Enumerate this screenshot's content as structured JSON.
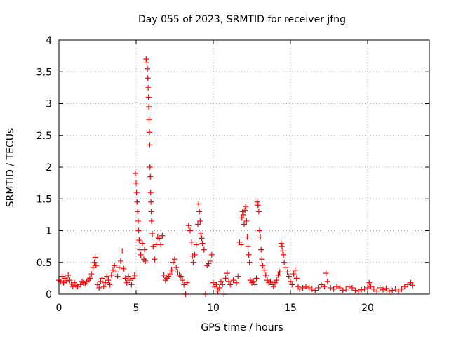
{
  "chart_data": {
    "type": "scatter",
    "title": "Day 055 of 2023, SRMTID for receiver jfng",
    "xlabel": "GPS time / hours",
    "ylabel": "SRMTID / TECUs",
    "xlim": [
      0,
      24
    ],
    "ylim": [
      0,
      4
    ],
    "xticks": [
      0,
      5,
      10,
      15,
      20
    ],
    "xtick_labels": [
      "0",
      "5",
      "10",
      "15",
      "20"
    ],
    "yticks": [
      0,
      0.5,
      1,
      1.5,
      2,
      2.5,
      3,
      3.5,
      4
    ],
    "ytick_labels": [
      "0",
      "0.5",
      "1",
      "1.5",
      "2",
      "2.5",
      "3",
      "3.5",
      "4"
    ],
    "grid": true,
    "marker": "+",
    "series": [
      {
        "name": "SRMTID",
        "color": "#ff0000",
        "points": [
          [
            0.0,
            0.22
          ],
          [
            0.1,
            0.2
          ],
          [
            0.2,
            0.28
          ],
          [
            0.3,
            0.18
          ],
          [
            0.4,
            0.25
          ],
          [
            0.5,
            0.21
          ],
          [
            0.6,
            0.3
          ],
          [
            0.7,
            0.22
          ],
          [
            0.8,
            0.16
          ],
          [
            0.9,
            0.12
          ],
          [
            1.0,
            0.18
          ],
          [
            1.1,
            0.14
          ],
          [
            1.2,
            0.12
          ],
          [
            1.4,
            0.15
          ],
          [
            1.5,
            0.2
          ],
          [
            1.6,
            0.18
          ],
          [
            1.7,
            0.16
          ],
          [
            1.8,
            0.2
          ],
          [
            1.9,
            0.22
          ],
          [
            2.0,
            0.25
          ],
          [
            2.1,
            0.32
          ],
          [
            2.2,
            0.42
          ],
          [
            2.3,
            0.5
          ],
          [
            2.35,
            0.58
          ],
          [
            2.4,
            0.45
          ],
          [
            2.5,
            0.15
          ],
          [
            2.6,
            0.1
          ],
          [
            2.7,
            0.2
          ],
          [
            2.8,
            0.25
          ],
          [
            2.9,
            0.12
          ],
          [
            3.0,
            0.18
          ],
          [
            3.1,
            0.28
          ],
          [
            3.2,
            0.22
          ],
          [
            3.3,
            0.15
          ],
          [
            3.4,
            0.3
          ],
          [
            3.5,
            0.38
          ],
          [
            3.6,
            0.45
          ],
          [
            3.7,
            0.35
          ],
          [
            3.8,
            0.28
          ],
          [
            3.9,
            0.42
          ],
          [
            4.0,
            0.52
          ],
          [
            4.1,
            0.68
          ],
          [
            4.2,
            0.4
          ],
          [
            4.3,
            0.25
          ],
          [
            4.4,
            0.18
          ],
          [
            4.5,
            0.28
          ],
          [
            4.6,
            0.22
          ],
          [
            4.7,
            0.15
          ],
          [
            4.8,
            0.25
          ],
          [
            4.9,
            0.3
          ],
          [
            4.95,
            1.9
          ],
          [
            5.0,
            1.75
          ],
          [
            5.03,
            1.6
          ],
          [
            5.06,
            1.45
          ],
          [
            5.1,
            1.3
          ],
          [
            5.13,
            1.15
          ],
          [
            5.16,
            1.0
          ],
          [
            5.2,
            0.85
          ],
          [
            5.25,
            0.7
          ],
          [
            5.3,
            0.62
          ],
          [
            5.4,
            0.8
          ],
          [
            5.5,
            0.55
          ],
          [
            5.55,
            0.7
          ],
          [
            5.6,
            0.52
          ],
          [
            5.65,
            3.7
          ],
          [
            5.7,
            3.65
          ],
          [
            5.73,
            3.55
          ],
          [
            5.76,
            3.4
          ],
          [
            5.78,
            3.25
          ],
          [
            5.8,
            3.1
          ],
          [
            5.82,
            2.95
          ],
          [
            5.84,
            2.75
          ],
          [
            5.86,
            2.55
          ],
          [
            5.88,
            2.35
          ],
          [
            5.9,
            2.0
          ],
          [
            5.92,
            1.85
          ],
          [
            5.94,
            1.6
          ],
          [
            5.96,
            1.45
          ],
          [
            5.98,
            1.3
          ],
          [
            6.0,
            1.15
          ],
          [
            6.05,
            0.95
          ],
          [
            6.1,
            0.75
          ],
          [
            6.2,
            0.55
          ],
          [
            6.3,
            0.78
          ],
          [
            6.4,
            0.9
          ],
          [
            6.5,
            0.88
          ],
          [
            6.6,
            0.78
          ],
          [
            6.7,
            0.92
          ],
          [
            6.8,
            0.3
          ],
          [
            6.9,
            0.22
          ],
          [
            7.0,
            0.25
          ],
          [
            7.1,
            0.28
          ],
          [
            7.2,
            0.32
          ],
          [
            7.3,
            0.38
          ],
          [
            7.4,
            0.5
          ],
          [
            7.5,
            0.55
          ],
          [
            7.6,
            0.42
          ],
          [
            7.7,
            0.35
          ],
          [
            7.8,
            0.3
          ],
          [
            7.9,
            0.28
          ],
          [
            8.0,
            0.22
          ],
          [
            8.1,
            0.15
          ],
          [
            8.2,
            0.0
          ],
          [
            8.3,
            0.18
          ],
          [
            8.4,
            1.08
          ],
          [
            8.5,
            1.0
          ],
          [
            8.6,
            0.82
          ],
          [
            8.65,
            0.6
          ],
          [
            8.7,
            0.5
          ],
          [
            8.8,
            0.62
          ],
          [
            8.9,
            0.78
          ],
          [
            9.0,
            1.1
          ],
          [
            9.05,
            1.42
          ],
          [
            9.1,
            1.3
          ],
          [
            9.15,
            1.15
          ],
          [
            9.2,
            0.95
          ],
          [
            9.25,
            0.88
          ],
          [
            9.3,
            0.8
          ],
          [
            9.4,
            0.7
          ],
          [
            9.5,
            0.0
          ],
          [
            9.6,
            0.45
          ],
          [
            9.7,
            0.48
          ],
          [
            9.8,
            0.52
          ],
          [
            9.9,
            0.62
          ],
          [
            10.0,
            0.18
          ],
          [
            10.1,
            0.12
          ],
          [
            10.2,
            0.15
          ],
          [
            10.3,
            0.05
          ],
          [
            10.4,
            0.1
          ],
          [
            10.5,
            0.2
          ],
          [
            10.6,
            0.15
          ],
          [
            10.7,
            0.0
          ],
          [
            10.8,
            0.25
          ],
          [
            10.9,
            0.33
          ],
          [
            11.0,
            0.2
          ],
          [
            11.1,
            0.15
          ],
          [
            11.3,
            0.22
          ],
          [
            11.5,
            0.18
          ],
          [
            11.6,
            0.28
          ],
          [
            11.7,
            0.82
          ],
          [
            11.8,
            0.78
          ],
          [
            11.85,
            1.2
          ],
          [
            11.9,
            1.3
          ],
          [
            11.95,
            1.25
          ],
          [
            12.0,
            1.1
          ],
          [
            12.05,
            1.32
          ],
          [
            12.1,
            1.38
          ],
          [
            12.15,
            1.15
          ],
          [
            12.2,
            0.9
          ],
          [
            12.25,
            0.75
          ],
          [
            12.3,
            0.62
          ],
          [
            12.35,
            0.5
          ],
          [
            12.4,
            0.22
          ],
          [
            12.5,
            0.18
          ],
          [
            12.6,
            0.2
          ],
          [
            12.7,
            0.15
          ],
          [
            12.8,
            0.25
          ],
          [
            12.85,
            1.45
          ],
          [
            12.9,
            1.4
          ],
          [
            12.95,
            1.3
          ],
          [
            13.0,
            1.0
          ],
          [
            13.05,
            0.9
          ],
          [
            13.1,
            0.7
          ],
          [
            13.15,
            0.55
          ],
          [
            13.2,
            0.45
          ],
          [
            13.3,
            0.38
          ],
          [
            13.4,
            0.3
          ],
          [
            13.5,
            0.22
          ],
          [
            13.6,
            0.18
          ],
          [
            13.7,
            0.2
          ],
          [
            13.8,
            0.15
          ],
          [
            13.9,
            0.12
          ],
          [
            14.0,
            0.18
          ],
          [
            14.1,
            0.22
          ],
          [
            14.2,
            0.3
          ],
          [
            14.3,
            0.35
          ],
          [
            14.4,
            0.8
          ],
          [
            14.45,
            0.75
          ],
          [
            14.5,
            0.68
          ],
          [
            14.55,
            0.62
          ],
          [
            14.6,
            0.5
          ],
          [
            14.7,
            0.42
          ],
          [
            14.8,
            0.35
          ],
          [
            14.9,
            0.28
          ],
          [
            15.0,
            0.2
          ],
          [
            15.1,
            0.15
          ],
          [
            15.2,
            0.32
          ],
          [
            15.3,
            0.38
          ],
          [
            15.4,
            0.25
          ],
          [
            15.5,
            0.12
          ],
          [
            15.6,
            0.08
          ],
          [
            15.8,
            0.1
          ],
          [
            16.0,
            0.12
          ],
          [
            16.2,
            0.1
          ],
          [
            16.4,
            0.08
          ],
          [
            16.6,
            0.06
          ],
          [
            16.8,
            0.1
          ],
          [
            17.0,
            0.15
          ],
          [
            17.2,
            0.12
          ],
          [
            17.3,
            0.33
          ],
          [
            17.4,
            0.2
          ],
          [
            17.6,
            0.1
          ],
          [
            17.8,
            0.08
          ],
          [
            18.0,
            0.12
          ],
          [
            18.2,
            0.1
          ],
          [
            18.4,
            0.06
          ],
          [
            18.6,
            0.08
          ],
          [
            18.8,
            0.12
          ],
          [
            19.0,
            0.1
          ],
          [
            19.2,
            0.06
          ],
          [
            19.4,
            0.05
          ],
          [
            19.6,
            0.07
          ],
          [
            19.8,
            0.08
          ],
          [
            20.0,
            0.1
          ],
          [
            20.1,
            0.18
          ],
          [
            20.2,
            0.12
          ],
          [
            20.4,
            0.08
          ],
          [
            20.6,
            0.05
          ],
          [
            20.8,
            0.1
          ],
          [
            21.0,
            0.07
          ],
          [
            21.2,
            0.09
          ],
          [
            21.4,
            0.05
          ],
          [
            21.6,
            0.06
          ],
          [
            21.8,
            0.08
          ],
          [
            22.0,
            0.05
          ],
          [
            22.2,
            0.08
          ],
          [
            22.4,
            0.12
          ],
          [
            22.6,
            0.15
          ],
          [
            22.8,
            0.18
          ],
          [
            22.9,
            0.14
          ]
        ]
      }
    ]
  }
}
